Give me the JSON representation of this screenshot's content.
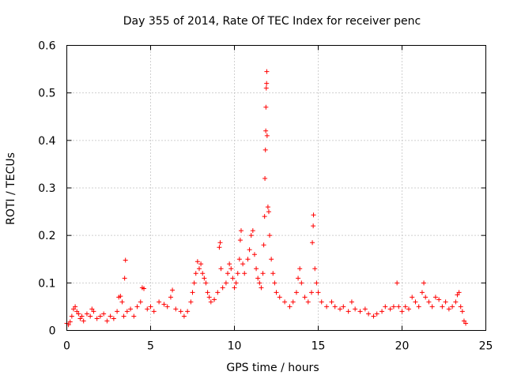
{
  "chart_data": {
    "type": "scatter",
    "title": "Day 355 of 2014, Rate Of TEC Index for receiver penc",
    "xlabel": "GPS time / hours",
    "ylabel": "ROTI / TECUs",
    "xlim": [
      0,
      25
    ],
    "ylim": [
      0,
      0.6
    ],
    "xticks": [
      0,
      5,
      10,
      15,
      20,
      25
    ],
    "xtick_labels": [
      "0",
      "5",
      "10",
      "15",
      "20",
      "25"
    ],
    "yticks": [
      0,
      0.1,
      0.2,
      0.3,
      0.4,
      0.5,
      0.6
    ],
    "ytick_labels": [
      "0",
      "0.1",
      "0.2",
      "0.3",
      "0.4",
      "0.5",
      "0.6"
    ],
    "grid": true,
    "marker": "+",
    "colors": {
      "series": "#ff0000",
      "grid": "#a0a0a0",
      "axis": "#000000"
    },
    "series": [
      {
        "name": "ROTI",
        "points": [
          [
            0.0,
            0.015
          ],
          [
            0.1,
            0.012
          ],
          [
            0.2,
            0.018
          ],
          [
            0.3,
            0.03
          ],
          [
            0.4,
            0.045
          ],
          [
            0.5,
            0.05
          ],
          [
            0.6,
            0.04
          ],
          [
            0.7,
            0.035
          ],
          [
            0.8,
            0.025
          ],
          [
            0.9,
            0.03
          ],
          [
            1.0,
            0.02
          ],
          [
            1.2,
            0.035
          ],
          [
            1.4,
            0.03
          ],
          [
            1.5,
            0.045
          ],
          [
            1.6,
            0.04
          ],
          [
            1.8,
            0.025
          ],
          [
            2.0,
            0.03
          ],
          [
            2.2,
            0.035
          ],
          [
            2.4,
            0.02
          ],
          [
            2.6,
            0.03
          ],
          [
            2.8,
            0.025
          ],
          [
            3.0,
            0.04
          ],
          [
            3.1,
            0.07
          ],
          [
            3.2,
            0.072
          ],
          [
            3.3,
            0.06
          ],
          [
            3.4,
            0.03
          ],
          [
            3.45,
            0.11
          ],
          [
            3.5,
            0.148
          ],
          [
            3.6,
            0.04
          ],
          [
            3.8,
            0.045
          ],
          [
            4.0,
            0.03
          ],
          [
            4.2,
            0.05
          ],
          [
            4.4,
            0.06
          ],
          [
            4.5,
            0.09
          ],
          [
            4.6,
            0.088
          ],
          [
            4.8,
            0.045
          ],
          [
            5.0,
            0.05
          ],
          [
            5.2,
            0.04
          ],
          [
            5.5,
            0.06
          ],
          [
            5.8,
            0.055
          ],
          [
            6.0,
            0.05
          ],
          [
            6.2,
            0.07
          ],
          [
            6.3,
            0.085
          ],
          [
            6.5,
            0.045
          ],
          [
            6.8,
            0.04
          ],
          [
            7.0,
            0.03
          ],
          [
            7.2,
            0.04
          ],
          [
            7.4,
            0.06
          ],
          [
            7.5,
            0.08
          ],
          [
            7.6,
            0.1
          ],
          [
            7.7,
            0.12
          ],
          [
            7.8,
            0.145
          ],
          [
            7.9,
            0.13
          ],
          [
            8.0,
            0.14
          ],
          [
            8.1,
            0.12
          ],
          [
            8.2,
            0.11
          ],
          [
            8.3,
            0.1
          ],
          [
            8.4,
            0.08
          ],
          [
            8.5,
            0.07
          ],
          [
            8.6,
            0.06
          ],
          [
            8.8,
            0.065
          ],
          [
            9.0,
            0.08
          ],
          [
            9.1,
            0.175
          ],
          [
            9.15,
            0.185
          ],
          [
            9.2,
            0.13
          ],
          [
            9.3,
            0.09
          ],
          [
            9.5,
            0.1
          ],
          [
            9.6,
            0.12
          ],
          [
            9.7,
            0.14
          ],
          [
            9.8,
            0.13
          ],
          [
            9.9,
            0.11
          ],
          [
            10.0,
            0.09
          ],
          [
            10.1,
            0.1
          ],
          [
            10.2,
            0.12
          ],
          [
            10.3,
            0.15
          ],
          [
            10.35,
            0.19
          ],
          [
            10.4,
            0.21
          ],
          [
            10.5,
            0.14
          ],
          [
            10.6,
            0.12
          ],
          [
            10.8,
            0.15
          ],
          [
            10.9,
            0.17
          ],
          [
            11.0,
            0.2
          ],
          [
            11.1,
            0.21
          ],
          [
            11.2,
            0.16
          ],
          [
            11.3,
            0.13
          ],
          [
            11.4,
            0.11
          ],
          [
            11.5,
            0.1
          ],
          [
            11.6,
            0.09
          ],
          [
            11.7,
            0.12
          ],
          [
            11.75,
            0.18
          ],
          [
            11.8,
            0.24
          ],
          [
            11.82,
            0.32
          ],
          [
            11.85,
            0.38
          ],
          [
            11.87,
            0.42
          ],
          [
            11.88,
            0.47
          ],
          [
            11.9,
            0.51
          ],
          [
            11.92,
            0.52
          ],
          [
            11.93,
            0.545
          ],
          [
            11.95,
            0.41
          ],
          [
            12.0,
            0.26
          ],
          [
            12.05,
            0.25
          ],
          [
            12.1,
            0.2
          ],
          [
            12.2,
            0.15
          ],
          [
            12.3,
            0.12
          ],
          [
            12.4,
            0.1
          ],
          [
            12.5,
            0.08
          ],
          [
            12.7,
            0.07
          ],
          [
            13.0,
            0.06
          ],
          [
            13.3,
            0.05
          ],
          [
            13.5,
            0.06
          ],
          [
            13.7,
            0.08
          ],
          [
            13.8,
            0.11
          ],
          [
            13.9,
            0.13
          ],
          [
            14.0,
            0.1
          ],
          [
            14.2,
            0.07
          ],
          [
            14.4,
            0.06
          ],
          [
            14.6,
            0.08
          ],
          [
            14.65,
            0.185
          ],
          [
            14.7,
            0.22
          ],
          [
            14.72,
            0.243
          ],
          [
            14.8,
            0.13
          ],
          [
            14.9,
            0.1
          ],
          [
            15.0,
            0.08
          ],
          [
            15.2,
            0.06
          ],
          [
            15.5,
            0.05
          ],
          [
            15.8,
            0.06
          ],
          [
            16.0,
            0.05
          ],
          [
            16.3,
            0.045
          ],
          [
            16.5,
            0.05
          ],
          [
            16.8,
            0.04
          ],
          [
            17.0,
            0.06
          ],
          [
            17.2,
            0.045
          ],
          [
            17.5,
            0.04
          ],
          [
            17.8,
            0.045
          ],
          [
            18.0,
            0.035
          ],
          [
            18.3,
            0.03
          ],
          [
            18.5,
            0.035
          ],
          [
            18.8,
            0.04
          ],
          [
            19.0,
            0.05
          ],
          [
            19.3,
            0.045
          ],
          [
            19.5,
            0.05
          ],
          [
            19.7,
            0.1
          ],
          [
            19.8,
            0.05
          ],
          [
            20.0,
            0.04
          ],
          [
            20.2,
            0.05
          ],
          [
            20.4,
            0.045
          ],
          [
            20.6,
            0.07
          ],
          [
            20.8,
            0.06
          ],
          [
            21.0,
            0.05
          ],
          [
            21.2,
            0.08
          ],
          [
            21.3,
            0.1
          ],
          [
            21.4,
            0.07
          ],
          [
            21.6,
            0.06
          ],
          [
            21.8,
            0.05
          ],
          [
            22.0,
            0.07
          ],
          [
            22.2,
            0.065
          ],
          [
            22.4,
            0.05
          ],
          [
            22.6,
            0.06
          ],
          [
            22.8,
            0.045
          ],
          [
            23.0,
            0.05
          ],
          [
            23.2,
            0.06
          ],
          [
            23.3,
            0.075
          ],
          [
            23.4,
            0.08
          ],
          [
            23.5,
            0.05
          ],
          [
            23.6,
            0.04
          ],
          [
            23.7,
            0.02
          ],
          [
            23.8,
            0.015
          ]
        ]
      }
    ]
  }
}
